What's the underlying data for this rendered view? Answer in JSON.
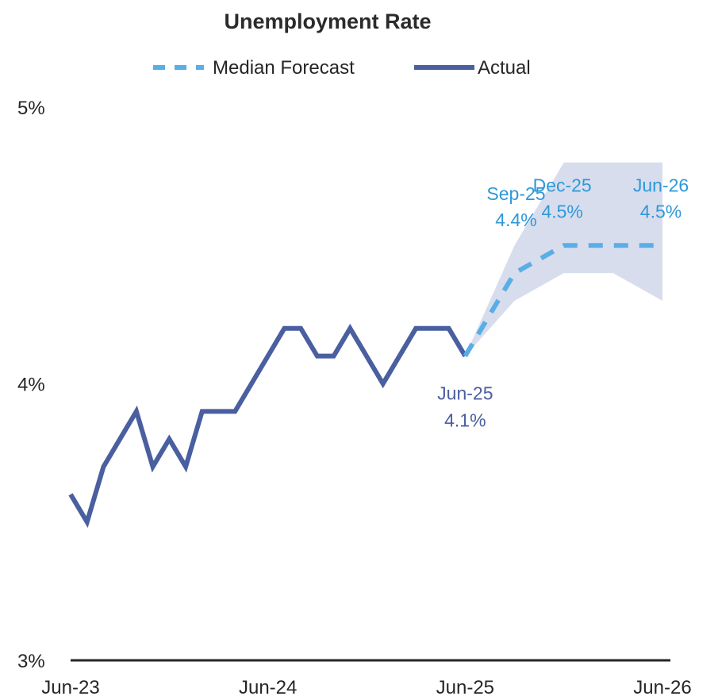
{
  "chart_data": {
    "type": "line",
    "title": "Unemployment Rate",
    "legend": {
      "position": "top",
      "entries": [
        {
          "label": "Median Forecast",
          "style": "dashed",
          "color": "#5aaee6"
        },
        {
          "label": "Actual",
          "style": "solid",
          "color": "#4a5fa0"
        }
      ]
    },
    "ylim": [
      3,
      5
    ],
    "y_ticks": [
      3,
      4,
      5
    ],
    "y_tick_labels": [
      "3%",
      "4%",
      "5%"
    ],
    "x_tick_labels": [
      "Jun-23",
      "Jun-24",
      "Jun-25",
      "Jun-26"
    ],
    "grid": false,
    "series": [
      {
        "name": "Actual",
        "color": "#4a5fa0",
        "x": [
          "Jun-23",
          "Jul-23",
          "Aug-23",
          "Sep-23",
          "Oct-23",
          "Nov-23",
          "Dec-23",
          "Jan-24",
          "Feb-24",
          "Mar-24",
          "Apr-24",
          "May-24",
          "Jun-24",
          "Jul-24",
          "Aug-24",
          "Sep-24",
          "Oct-24",
          "Nov-24",
          "Dec-24",
          "Jan-25",
          "Feb-25",
          "Mar-25",
          "Apr-25",
          "May-25",
          "Jun-25"
        ],
        "values": [
          3.6,
          3.5,
          3.7,
          3.8,
          3.9,
          3.7,
          3.8,
          3.7,
          3.9,
          3.9,
          3.9,
          4.0,
          4.1,
          4.2,
          4.2,
          4.1,
          4.1,
          4.2,
          4.1,
          4.0,
          4.1,
          4.2,
          4.2,
          4.2,
          4.1
        ]
      },
      {
        "name": "Median Forecast",
        "color": "#5aaee6",
        "x": [
          "Jun-25",
          "Sep-25",
          "Dec-25",
          "Mar-26",
          "Jun-26"
        ],
        "values": [
          4.1,
          4.4,
          4.5,
          4.5,
          4.5
        ]
      }
    ],
    "forecast_range": {
      "color": "#d8ddee",
      "x": [
        "Jun-25",
        "Sep-25",
        "Dec-25",
        "Mar-26",
        "Jun-26"
      ],
      "low": [
        4.1,
        4.3,
        4.4,
        4.4,
        4.3
      ],
      "high": [
        4.1,
        4.5,
        4.8,
        4.8,
        4.8
      ]
    },
    "annotations": [
      {
        "series": "Actual",
        "x": "Jun-25",
        "label": "Jun-25",
        "value_label": "4.1%",
        "color": "#4a5fa0"
      },
      {
        "series": "Median Forecast",
        "x": "Sep-25",
        "label": "Sep-25",
        "value_label": "4.4%",
        "color": "#2f98d8"
      },
      {
        "series": "Median Forecast",
        "x": "Dec-25",
        "label": "Dec-25",
        "value_label": "4.5%",
        "color": "#2f98d8"
      },
      {
        "series": "Median Forecast",
        "x": "Jun-26",
        "label": "Jun-26",
        "value_label": "4.5%",
        "color": "#2f98d8"
      }
    ]
  }
}
